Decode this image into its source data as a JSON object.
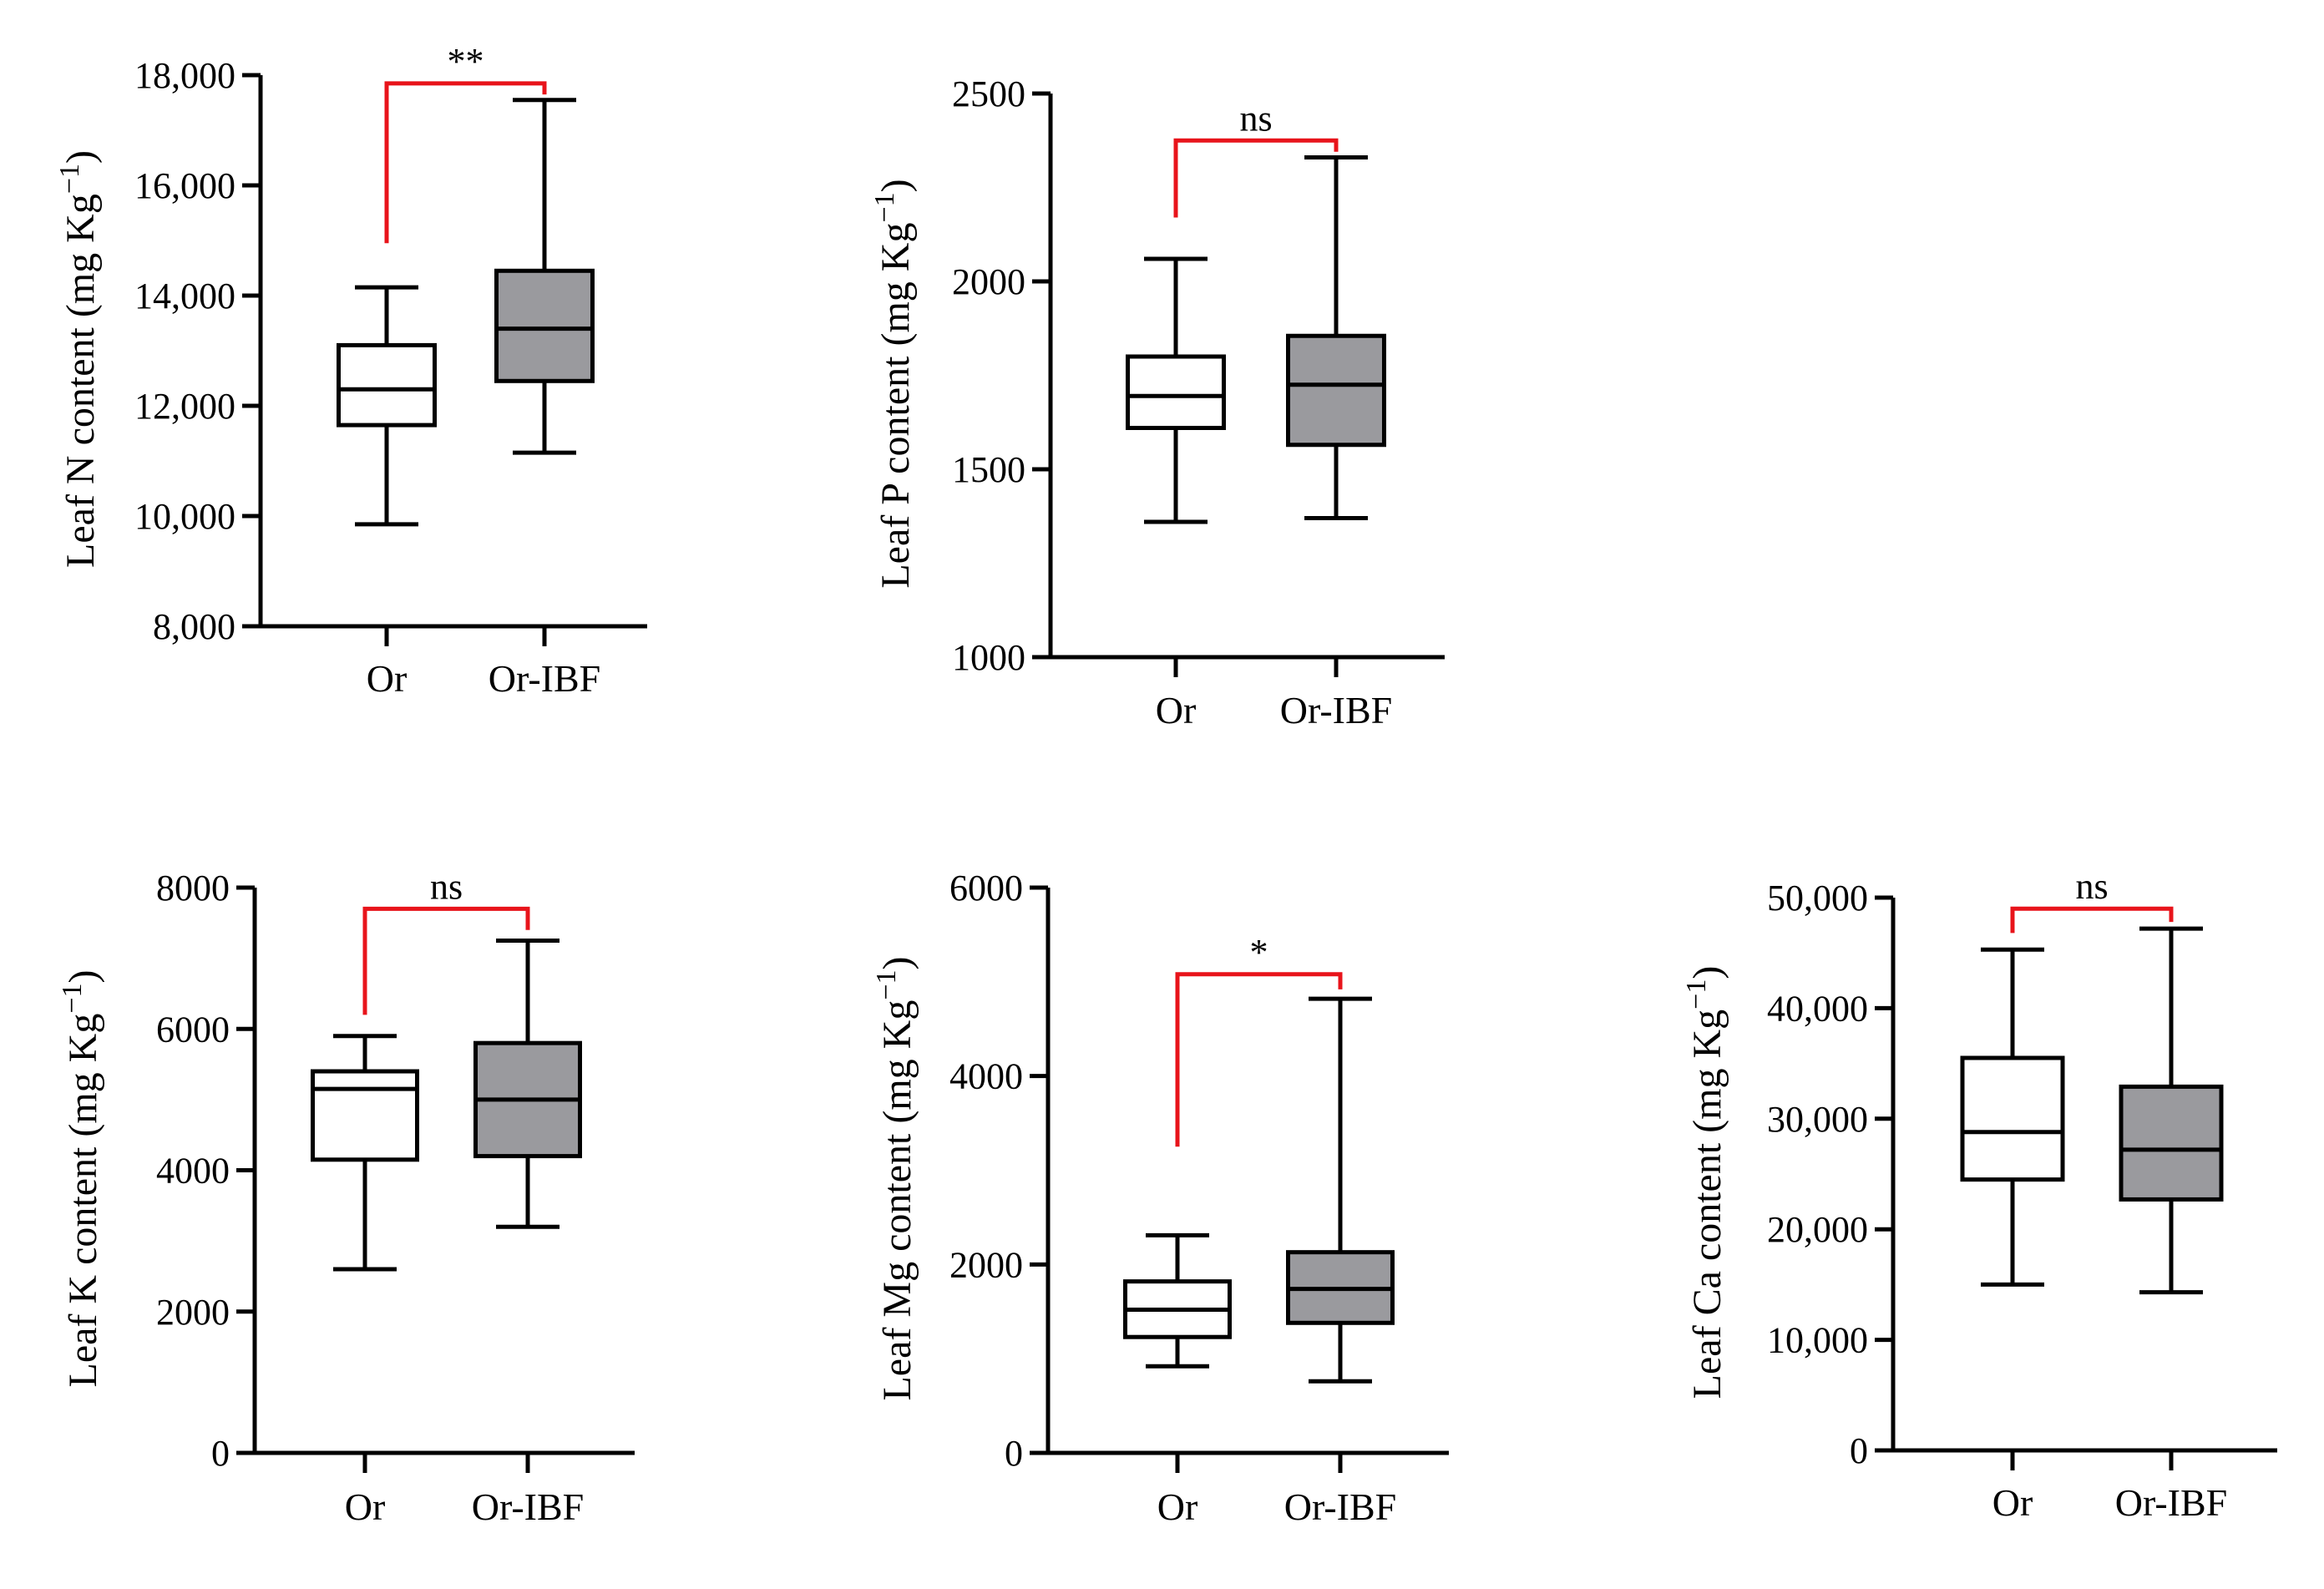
{
  "colors": {
    "axis": "#000000",
    "box_or": "#ffffff",
    "box_ibf": "#9a9a9e",
    "significance": "#e8141b"
  },
  "chart_data": [
    {
      "type": "box",
      "ylabel": "Leaf N content (mg Kg",
      "ylabel_sup": "−1",
      "ylabel_close": ")",
      "categories": [
        "Or",
        "Or-IBF"
      ],
      "ylim": [
        8000,
        18000
      ],
      "yticks": [
        8000,
        10000,
        12000,
        14000,
        16000,
        18000
      ],
      "ytick_labels": [
        "8,000",
        "10,000",
        "12,000",
        "14,000",
        "16,000",
        "18,000"
      ],
      "boxes": [
        {
          "name": "Or",
          "min": 9850,
          "q1": 11650,
          "median": 12300,
          "q3": 13100,
          "max": 14150
        },
        {
          "name": "Or-IBF",
          "min": 11150,
          "q1": 12450,
          "median": 13400,
          "q3": 14450,
          "max": 17550
        }
      ],
      "significance": {
        "label": "**",
        "bracket_y": 17850,
        "left_start": 14950,
        "right_start": 17650
      }
    },
    {
      "type": "box",
      "ylabel": "Leaf P content (mg Kg",
      "ylabel_sup": "−1",
      "ylabel_close": ")",
      "categories": [
        "Or",
        "Or-IBF"
      ],
      "ylim": [
        1000,
        2500
      ],
      "yticks": [
        1000,
        1500,
        2000,
        2500
      ],
      "ytick_labels": [
        "1000",
        "1500",
        "2000",
        "2500"
      ],
      "boxes": [
        {
          "name": "Or",
          "min": 1360,
          "q1": 1610,
          "median": 1695,
          "q3": 1800,
          "max": 2060
        },
        {
          "name": "Or-IBF",
          "min": 1370,
          "q1": 1565,
          "median": 1725,
          "q3": 1855,
          "max": 2330
        }
      ],
      "significance": {
        "label": "ns",
        "bracket_y": 2375,
        "left_start": 2170,
        "right_start": 2345
      }
    },
    {
      "type": "box",
      "ylabel": "Leaf K content (mg Kg",
      "ylabel_sup": "−1",
      "ylabel_close": ")",
      "categories": [
        "Or",
        "Or-IBF"
      ],
      "ylim": [
        0,
        8000
      ],
      "yticks": [
        0,
        2000,
        4000,
        6000,
        8000
      ],
      "ytick_labels": [
        "0",
        "2000",
        "4000",
        "6000",
        "8000"
      ],
      "boxes": [
        {
          "name": "Or",
          "min": 2600,
          "q1": 4150,
          "median": 5150,
          "q3": 5400,
          "max": 5900
        },
        {
          "name": "Or-IBF",
          "min": 3200,
          "q1": 4200,
          "median": 5000,
          "q3": 5800,
          "max": 7250
        }
      ],
      "significance": {
        "label": "ns",
        "bracket_y": 7700,
        "left_start": 6200,
        "right_start": 7400
      }
    },
    {
      "type": "box",
      "ylabel": "Leaf Mg content (mg Kg",
      "ylabel_sup": "−1",
      "ylabel_close": ")",
      "categories": [
        "Or",
        "Or-IBF"
      ],
      "ylim": [
        0,
        6000
      ],
      "yticks": [
        0,
        2000,
        4000,
        6000
      ],
      "ytick_labels": [
        "0",
        "2000",
        "4000",
        "6000"
      ],
      "boxes": [
        {
          "name": "Or",
          "min": 920,
          "q1": 1230,
          "median": 1520,
          "q3": 1820,
          "max": 2310
        },
        {
          "name": "Or-IBF",
          "min": 760,
          "q1": 1380,
          "median": 1740,
          "q3": 2130,
          "max": 4820
        }
      ],
      "significance": {
        "label": "*",
        "bracket_y": 5080,
        "left_start": 3250,
        "right_start": 4920
      }
    },
    {
      "type": "box",
      "ylabel": "Leaf Ca content (mg Kg",
      "ylabel_sup": "−1",
      "ylabel_close": ")",
      "categories": [
        "Or",
        "Or-IBF"
      ],
      "ylim": [
        0,
        50000
      ],
      "yticks": [
        0,
        10000,
        20000,
        30000,
        40000,
        50000
      ],
      "ytick_labels": [
        "0",
        "10,000",
        "20,000",
        "30,000",
        "40,000",
        "50,000"
      ],
      "boxes": [
        {
          "name": "Or",
          "min": 15000,
          "q1": 24500,
          "median": 28800,
          "q3": 35500,
          "max": 45300
        },
        {
          "name": "Or-IBF",
          "min": 14300,
          "q1": 22700,
          "median": 27200,
          "q3": 32900,
          "max": 47200
        }
      ],
      "significance": {
        "label": "ns",
        "bracket_y": 49000,
        "left_start": 46800,
        "right_start": 47800
      }
    }
  ]
}
